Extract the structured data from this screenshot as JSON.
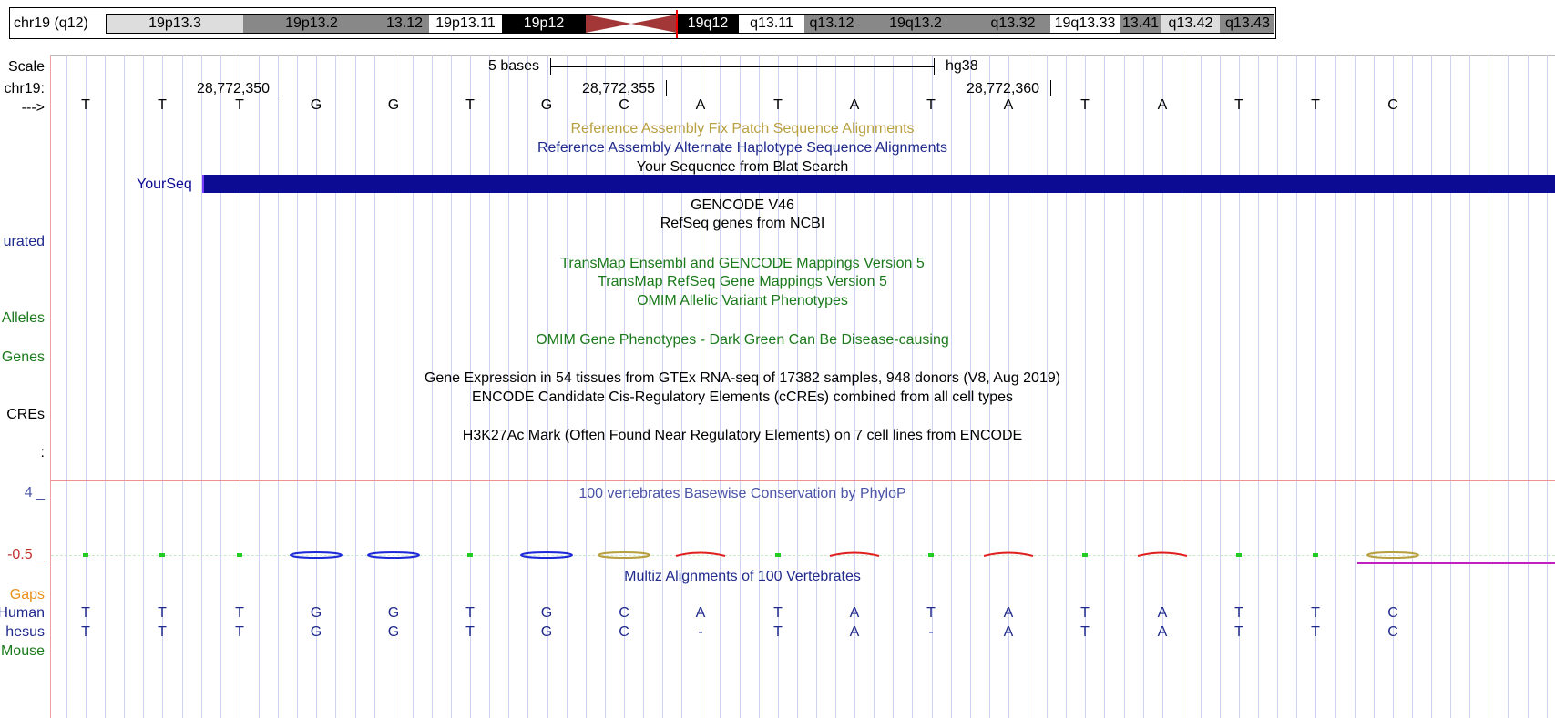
{
  "ideogram": {
    "chrom_label": "chr19 (q12)",
    "bands": [
      {
        "name": "19p13.3",
        "color": "#dddddd",
        "text": "#000000"
      },
      {
        "name": "19p13.2",
        "color": "#888888",
        "text": "#000000"
      },
      {
        "name": "13.12",
        "color": "#888888",
        "text": "#000000"
      },
      {
        "name": "19p13.11",
        "color": "#ffffff",
        "text": "#000000"
      },
      {
        "name": "19p12",
        "color": "#000000",
        "text": "#ffffff"
      },
      {
        "name": "19q12",
        "color": "#000000",
        "text": "#ffffff"
      },
      {
        "name": "q13.11",
        "color": "#ffffff",
        "text": "#000000"
      },
      {
        "name": "q13.12",
        "color": "#888888",
        "text": "#000000"
      },
      {
        "name": "19q13.2",
        "color": "#888888",
        "text": "#000000"
      },
      {
        "name": "q13.32",
        "color": "#888888",
        "text": "#000000"
      },
      {
        "name": "19q13.33",
        "color": "#ffffff",
        "text": "#000000"
      },
      {
        "name": "13.41",
        "color": "#888888",
        "text": "#000000"
      },
      {
        "name": "q13.42",
        "color": "#dddddd",
        "text": "#000000"
      },
      {
        "name": "q13.43",
        "color": "#888888",
        "text": "#000000"
      }
    ],
    "centromere_color": "#a33636",
    "cursor_color": "#ee0000"
  },
  "ruler": {
    "scale_label": "Scale",
    "scale_text": "5 bases",
    "assembly": "hg38",
    "chrom_label": "chr19:",
    "strand_label": "--->",
    "coords": [
      "28,772,350",
      "28,772,355",
      "28,772,360"
    ]
  },
  "sequence": [
    "T",
    "T",
    "T",
    "G",
    "G",
    "T",
    "G",
    "C",
    "A",
    "T",
    "A",
    "T",
    "A",
    "T",
    "A",
    "T",
    "T",
    "C"
  ],
  "left_labels": {
    "curated": "urated",
    "alleles": "Alleles",
    "genes": "Genes",
    "ccres": "CREs",
    "colon": ":",
    "axis_max": "4 _",
    "axis_min": "-0.5 _",
    "gaps": "Gaps",
    "human": "Human",
    "rhesus": "hesus",
    "mouse": "Mouse"
  },
  "tracks": {
    "fix_patch": {
      "title": "Reference Assembly Fix Patch Sequence Alignments",
      "color": "#b8a040"
    },
    "alt_haplotype": {
      "title": "Reference Assembly Alternate Haplotype Sequence Alignments",
      "color": "#1f2a8c"
    },
    "blat": {
      "title": "Your Sequence from Blat Search",
      "color": "#000000",
      "item_label": "YourSeq",
      "item_color": "#0b0b93"
    },
    "gencode": {
      "title": "GENCODE V46",
      "color": "#000000"
    },
    "refseq": {
      "title": "RefSeq genes from NCBI",
      "color": "#000000"
    },
    "transmap_ens": {
      "title": "TransMap Ensembl and GENCODE Mappings Version 5",
      "color": "#1b7a1b"
    },
    "transmap_refseq": {
      "title": "TransMap RefSeq Gene Mappings Version 5",
      "color": "#1b7a1b"
    },
    "omim_alleles": {
      "title": "OMIM Allelic Variant Phenotypes",
      "color": "#1b7a1b"
    },
    "omim_genes": {
      "title": "OMIM Gene Phenotypes - Dark Green Can Be Disease-causing",
      "color": "#1b7a1b"
    },
    "gtex": {
      "title": "Gene Expression in 54 tissues from GTEx RNA-seq of 17382 samples, 948 donors (V8, Aug 2019)",
      "color": "#000000"
    },
    "encode_ccre": {
      "title": "ENCODE Candidate Cis-Regulatory Elements (cCREs) combined from all cell types",
      "color": "#000000"
    },
    "h3k27ac": {
      "title": "H3K27Ac Mark (Often Found Near Regulatory Elements) on 7 cell lines from ENCODE",
      "color": "#000000"
    },
    "phylop": {
      "title": "100 vertebrates Basewise Conservation by PhyloP",
      "color": "#4b55a8"
    },
    "multiz": {
      "title": "Multiz Alignments of 100 Vertebrates",
      "color": "#1f2a8c"
    }
  },
  "conservation": [
    "dot",
    "dot",
    "dot",
    "blue",
    "blue",
    "dot",
    "blue",
    "olive",
    "red",
    "dot",
    "red",
    "dot",
    "red",
    "dot",
    "red",
    "dot",
    "dot",
    "olive"
  ],
  "alignments": {
    "human": [
      "T",
      "T",
      "T",
      "G",
      "G",
      "T",
      "G",
      "C",
      "A",
      "T",
      "A",
      "T",
      "A",
      "T",
      "A",
      "T",
      "T",
      "C"
    ],
    "rhesus": [
      "T",
      "T",
      "T",
      "G",
      "G",
      "T",
      "G",
      "C",
      "-",
      "T",
      "A",
      "-",
      "A",
      "T",
      "A",
      "T",
      "T",
      "C"
    ]
  }
}
